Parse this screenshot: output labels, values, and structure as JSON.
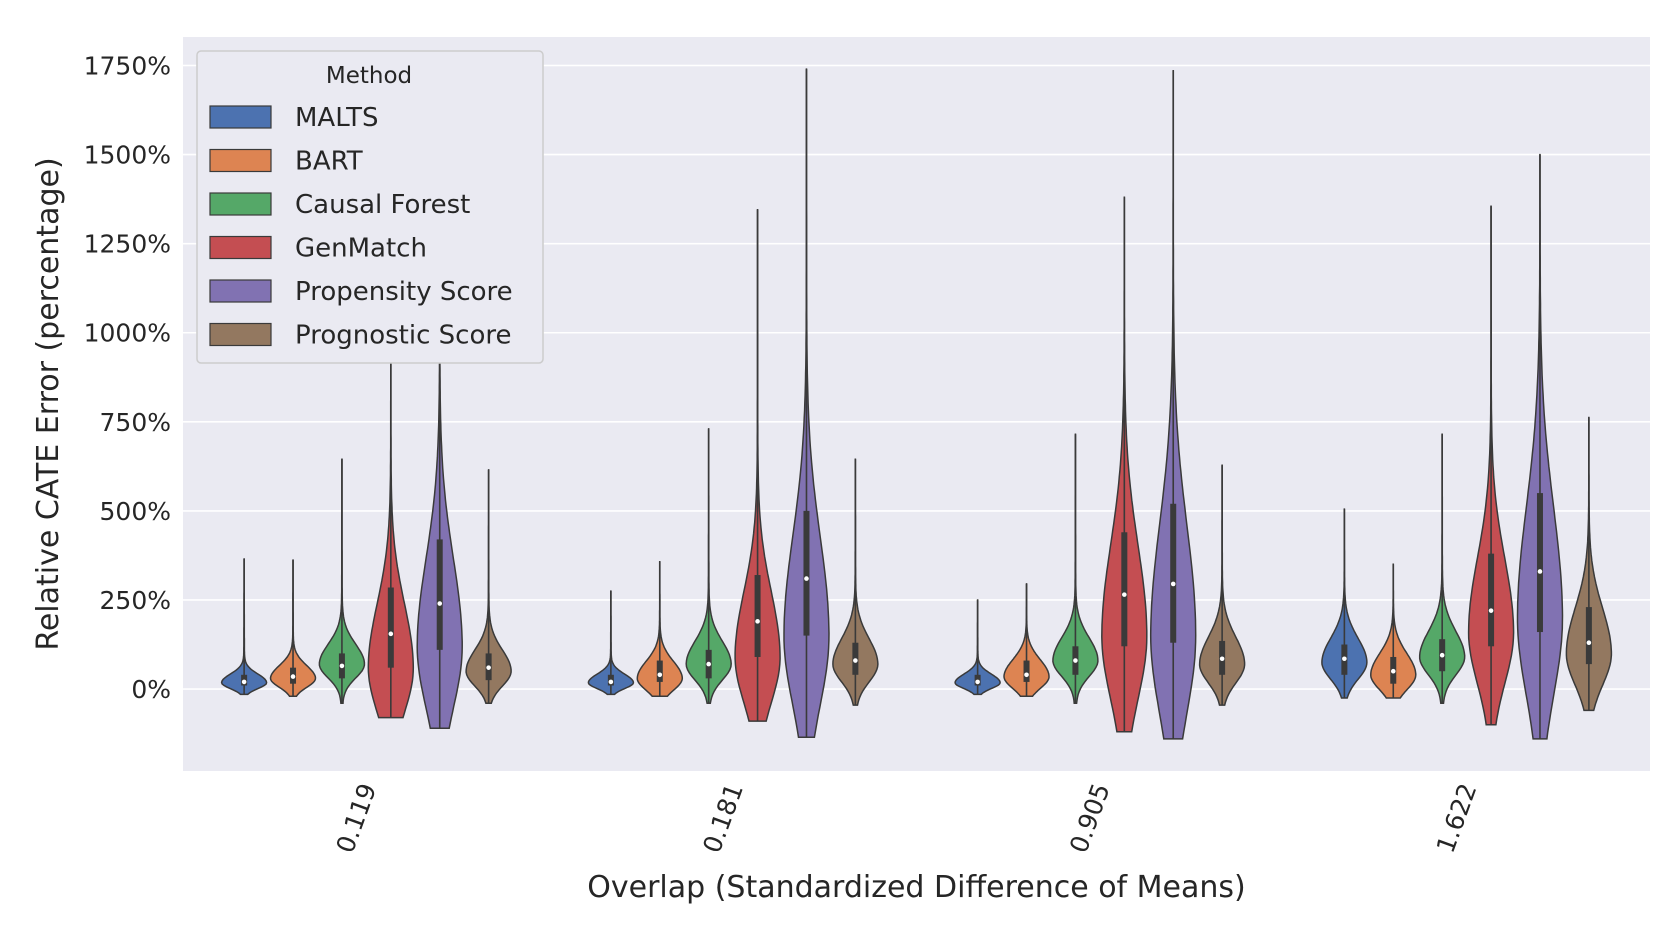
{
  "chart_data": {
    "type": "violin",
    "xlabel": "Overlap (Standardized Difference of Means)",
    "ylabel": "Relative CATE Error (percentage)",
    "categories": [
      "0.119",
      "0.181",
      "0.905",
      "1.622"
    ],
    "ylim": [
      -230,
      1830
    ],
    "yticks": [
      0,
      250,
      500,
      750,
      1000,
      1250,
      1500,
      1750
    ],
    "ytick_labels": [
      "0%",
      "250%",
      "500%",
      "750%",
      "1000%",
      "1250%",
      "1500%",
      "1750%"
    ],
    "grid": true,
    "legend": {
      "title": "Method",
      "placement": "top-left"
    },
    "series": [
      {
        "name": "MALTS",
        "color": "#4c72b0",
        "stats": [
          {
            "min": -15,
            "q1": 10,
            "median": 20,
            "q3": 40,
            "max": 365,
            "peak": 18
          },
          {
            "min": -15,
            "q1": 10,
            "median": 20,
            "q3": 40,
            "max": 275,
            "peak": 18
          },
          {
            "min": -15,
            "q1": 10,
            "median": 20,
            "q3": 40,
            "max": 250,
            "peak": 18
          },
          {
            "min": -25,
            "q1": 40,
            "median": 85,
            "q3": 125,
            "max": 505,
            "peak": 75
          }
        ]
      },
      {
        "name": "BART",
        "color": "#dd8452",
        "stats": [
          {
            "min": -20,
            "q1": 15,
            "median": 35,
            "q3": 60,
            "max": 362,
            "peak": 30
          },
          {
            "min": -20,
            "q1": 20,
            "median": 40,
            "q3": 80,
            "max": 357,
            "peak": 30
          },
          {
            "min": -20,
            "q1": 20,
            "median": 40,
            "q3": 80,
            "max": 295,
            "peak": 35
          },
          {
            "min": -25,
            "q1": 15,
            "median": 50,
            "q3": 90,
            "max": 350,
            "peak": 40
          }
        ]
      },
      {
        "name": "Causal Forest",
        "color": "#55a868",
        "stats": [
          {
            "min": -40,
            "q1": 30,
            "median": 65,
            "q3": 100,
            "max": 645,
            "peak": 70
          },
          {
            "min": -40,
            "q1": 30,
            "median": 70,
            "q3": 110,
            "max": 730,
            "peak": 70
          },
          {
            "min": -40,
            "q1": 40,
            "median": 80,
            "q3": 120,
            "max": 715,
            "peak": 80
          },
          {
            "min": -40,
            "q1": 50,
            "median": 95,
            "q3": 140,
            "max": 715,
            "peak": 90
          }
        ]
      },
      {
        "name": "GenMatch",
        "color": "#c44e52",
        "stats": [
          {
            "min": -80,
            "q1": 60,
            "median": 155,
            "q3": 285,
            "max": 1075,
            "peak": 60
          },
          {
            "min": -90,
            "q1": 90,
            "median": 190,
            "q3": 320,
            "max": 1345,
            "peak": 90
          },
          {
            "min": -120,
            "q1": 120,
            "median": 265,
            "q3": 440,
            "max": 1380,
            "peak": 150
          },
          {
            "min": -100,
            "q1": 120,
            "median": 220,
            "q3": 380,
            "max": 1355,
            "peak": 160
          }
        ]
      },
      {
        "name": "Propensity Score",
        "color": "#8172b2",
        "stats": [
          {
            "min": -110,
            "q1": 110,
            "median": 240,
            "q3": 420,
            "max": 1260,
            "peak": 120
          },
          {
            "min": -135,
            "q1": 150,
            "median": 310,
            "q3": 500,
            "max": 1740,
            "peak": 150
          },
          {
            "min": -140,
            "q1": 130,
            "median": 295,
            "q3": 520,
            "max": 1735,
            "peak": 150
          },
          {
            "min": -140,
            "q1": 160,
            "median": 330,
            "q3": 550,
            "max": 1500,
            "peak": 200
          }
        ]
      },
      {
        "name": "Prognostic Score",
        "color": "#937860",
        "stats": [
          {
            "min": -40,
            "q1": 25,
            "median": 60,
            "q3": 100,
            "max": 615,
            "peak": 50
          },
          {
            "min": -45,
            "q1": 40,
            "median": 80,
            "q3": 130,
            "max": 645,
            "peak": 70
          },
          {
            "min": -45,
            "q1": 40,
            "median": 85,
            "q3": 135,
            "max": 628,
            "peak": 70
          },
          {
            "min": -60,
            "q1": 70,
            "median": 130,
            "q3": 230,
            "max": 762,
            "peak": 100
          }
        ]
      }
    ]
  }
}
